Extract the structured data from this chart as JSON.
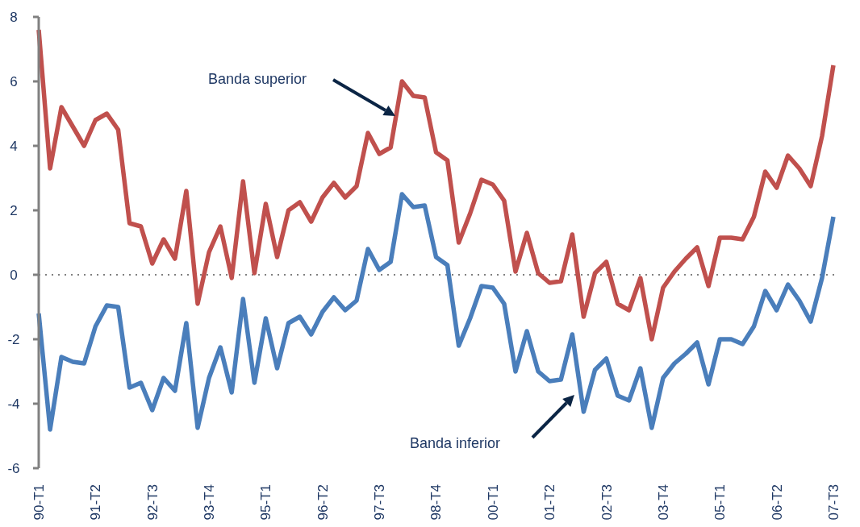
{
  "chart_data": {
    "type": "line",
    "categories": [
      "90-T1",
      null,
      null,
      null,
      null,
      "91-T2",
      null,
      null,
      null,
      null,
      "92-T3",
      null,
      null,
      null,
      null,
      "93-T4",
      null,
      null,
      null,
      null,
      "95-T1",
      null,
      null,
      null,
      null,
      "96-T2",
      null,
      null,
      null,
      null,
      "97-T3",
      null,
      null,
      null,
      null,
      "98-T4",
      null,
      null,
      null,
      null,
      "00-T1",
      null,
      null,
      null,
      null,
      "01-T2",
      null,
      null,
      null,
      null,
      "02-T3",
      null,
      null,
      null,
      null,
      "03-T4",
      null,
      null,
      null,
      null,
      "05-T1",
      null,
      null,
      null,
      null,
      "06-T2",
      null,
      null,
      null,
      null,
      "07-T3"
    ],
    "series": [
      {
        "color": "#c0504d",
        "values": [
          7.6,
          3.3,
          5.2,
          4.6,
          4.0,
          4.8,
          5.0,
          4.5,
          1.6,
          1.5,
          0.35,
          1.1,
          0.5,
          2.6,
          -0.9,
          0.7,
          1.5,
          -0.1,
          2.9,
          0.05,
          2.2,
          0.55,
          2.0,
          2.25,
          1.65,
          2.4,
          2.85,
          2.4,
          2.75,
          4.4,
          3.75,
          3.95,
          6.0,
          5.55,
          5.5,
          3.8,
          3.55,
          1.0,
          1.9,
          2.95,
          2.8,
          2.3,
          0.1,
          1.3,
          0.05,
          -0.25,
          -0.2,
          1.25,
          -1.3,
          0.05,
          0.4,
          -0.9,
          -1.1,
          -0.1,
          -2.0,
          -0.4,
          0.1,
          0.5,
          0.85,
          -0.35,
          1.15,
          1.15,
          1.1,
          1.8,
          3.2,
          2.7,
          3.7,
          3.3,
          2.75,
          4.3,
          6.5
        ]
      },
      {
        "color": "#4a7ebb",
        "values": [
          -1.2,
          -4.8,
          -2.55,
          -2.7,
          -2.75,
          -1.6,
          -0.95,
          -1.0,
          -3.5,
          -3.35,
          -4.2,
          -3.2,
          -3.6,
          -1.5,
          -4.75,
          -3.2,
          -2.25,
          -3.65,
          -0.75,
          -3.35,
          -1.35,
          -2.9,
          -1.5,
          -1.3,
          -1.85,
          -1.15,
          -0.7,
          -1.1,
          -0.8,
          0.8,
          0.15,
          0.4,
          2.5,
          2.1,
          2.15,
          0.55,
          0.3,
          -2.2,
          -1.35,
          -0.35,
          -0.4,
          -0.9,
          -3.0,
          -1.75,
          -3.0,
          -3.3,
          -3.25,
          -1.85,
          -4.25,
          -2.95,
          -2.6,
          -3.75,
          -3.9,
          -2.9,
          -4.75,
          -3.2,
          -2.75,
          -2.45,
          -2.1,
          -3.4,
          -2.0,
          -2.0,
          -2.15,
          -1.6,
          -0.5,
          -1.1,
          -0.3,
          -0.8,
          -1.45,
          -0.1,
          1.8
        ]
      }
    ],
    "annotations": [
      "Banda superior",
      "Banda inferior"
    ],
    "ylim": [
      -6,
      8
    ],
    "yticks": [
      -6,
      -4,
      -2,
      0,
      2,
      4,
      6,
      8
    ],
    "ref_lines": [
      {
        "axis": "y",
        "value": 0,
        "color": "#808080",
        "line_style": "dotted"
      }
    ]
  }
}
